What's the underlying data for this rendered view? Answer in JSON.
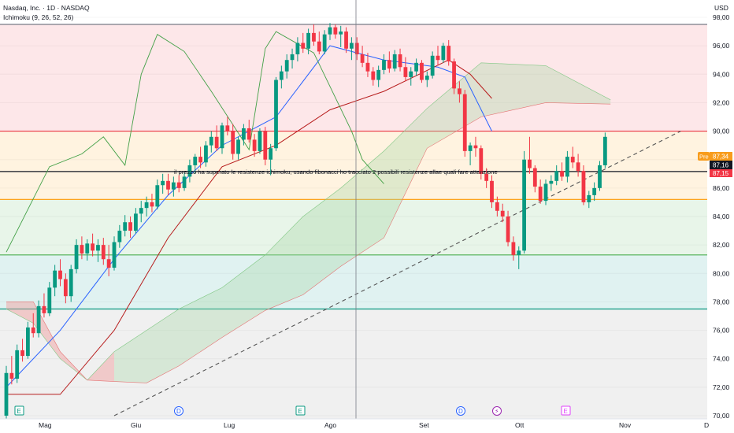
{
  "header": {
    "title": "Nasdaq, Inc. · 1D · NASDAQ",
    "indicator": "Ichimoku (9, 26, 52, 26)",
    "currency": "USD"
  },
  "annotation": "il prezzo ha superato le resistenze ichimoku, usando fibonacci ho tracciato 2 possibili resistenze allae quali fare attenzione",
  "price_badges": {
    "pre_label": "Pre",
    "pre_value": "87,34",
    "last_value": "87,16",
    "prev_value": "87,15",
    "pre_color": "#f89c1c",
    "last_color": "#131722",
    "prev_color": "#f23645"
  },
  "event_markers": [
    "E",
    "D",
    "E",
    "D",
    "⚡",
    "E"
  ],
  "colors": {
    "up": "#089981",
    "down": "#f23645",
    "tenkan": "#2962ff",
    "kijun": "#b71c1c",
    "chikou": "#43a047",
    "cloud_bull": "#a5d6a7",
    "cloud_bear": "#ef9a9a"
  },
  "chart_data": {
    "type": "candlestick",
    "symbol": "Nasdaq, Inc.",
    "interval": "1D",
    "y_axis": {
      "min": 70,
      "max": 98,
      "ticks": [
        70,
        72,
        74,
        76,
        78,
        80,
        82,
        84,
        86,
        88,
        90,
        92,
        94,
        96,
        98
      ],
      "tick_labels": [
        "70,00",
        "72,00",
        "74,00",
        "76,00",
        "78,00",
        "80,00",
        "82,00",
        "84,00",
        "86,00",
        "88,00",
        "90,00",
        "92,00",
        "94,00",
        "96,00",
        "98,00"
      ]
    },
    "x_axis": {
      "labels": [
        "Mag",
        "Giu",
        "Lug",
        "Ago",
        "Set",
        "Ott",
        "Nov",
        "D"
      ]
    },
    "fibonacci_bands": [
      {
        "price": 97.5,
        "color": "#787b86"
      },
      {
        "price": 90.0,
        "color": "#f23645"
      },
      {
        "price": 85.2,
        "color": "#ff9800"
      },
      {
        "price": 81.3,
        "color": "#4caf50"
      },
      {
        "price": 77.5,
        "color": "#089981"
      }
    ],
    "candles": [
      [
        70.0,
        73.5,
        69.5,
        73.0
      ],
      [
        73.0,
        74.2,
        72.2,
        72.6
      ],
      [
        72.6,
        75.0,
        72.3,
        74.6
      ],
      [
        74.6,
        75.4,
        73.8,
        74.2
      ],
      [
        74.2,
        76.6,
        74.0,
        76.2
      ],
      [
        76.2,
        77.2,
        75.5,
        75.8
      ],
      [
        75.8,
        78.1,
        75.5,
        77.7
      ],
      [
        77.7,
        78.6,
        76.9,
        77.2
      ],
      [
        77.2,
        79.4,
        77.0,
        79.0
      ],
      [
        79.0,
        80.6,
        78.4,
        80.2
      ],
      [
        80.2,
        81.0,
        79.1,
        79.6
      ],
      [
        79.6,
        80.0,
        77.9,
        78.4
      ],
      [
        78.4,
        80.6,
        78.0,
        80.3
      ],
      [
        80.3,
        82.4,
        80.0,
        82.0
      ],
      [
        82.0,
        82.6,
        81.0,
        81.4
      ],
      [
        81.4,
        82.4,
        80.9,
        82.1
      ],
      [
        82.1,
        82.8,
        81.2,
        81.6
      ],
      [
        81.6,
        82.4,
        80.8,
        82.0
      ],
      [
        82.0,
        82.5,
        80.6,
        81.0
      ],
      [
        81.0,
        82.0,
        79.8,
        80.4
      ],
      [
        80.4,
        82.6,
        80.2,
        82.2
      ],
      [
        82.2,
        83.4,
        81.8,
        83.0
      ],
      [
        83.0,
        84.1,
        82.6,
        83.6
      ],
      [
        83.6,
        84.0,
        82.5,
        83.0
      ],
      [
        83.0,
        84.6,
        82.8,
        84.2
      ],
      [
        84.2,
        85.1,
        83.6,
        84.6
      ],
      [
        84.6,
        85.4,
        84.0,
        85.0
      ],
      [
        85.0,
        85.6,
        84.3,
        84.7
      ],
      [
        84.7,
        86.6,
        84.5,
        86.2
      ],
      [
        86.2,
        87.0,
        85.6,
        86.5
      ],
      [
        86.5,
        87.0,
        85.5,
        85.9
      ],
      [
        85.9,
        86.8,
        85.4,
        86.4
      ],
      [
        86.4,
        86.9,
        85.7,
        86.0
      ],
      [
        86.0,
        87.1,
        85.8,
        86.8
      ],
      [
        86.8,
        88.0,
        86.4,
        87.6
      ],
      [
        87.6,
        88.4,
        87.0,
        88.2
      ],
      [
        88.2,
        88.9,
        87.4,
        87.8
      ],
      [
        87.8,
        89.3,
        87.5,
        89.0
      ],
      [
        89.0,
        90.0,
        88.5,
        89.6
      ],
      [
        89.6,
        90.4,
        88.6,
        88.8
      ],
      [
        88.8,
        90.6,
        88.4,
        90.4
      ],
      [
        90.4,
        91.0,
        89.7,
        90.0
      ],
      [
        90.0,
        90.5,
        88.0,
        88.4
      ],
      [
        88.4,
        89.6,
        88.0,
        89.4
      ],
      [
        89.4,
        90.5,
        89.0,
        90.2
      ],
      [
        90.2,
        90.8,
        89.2,
        89.4
      ],
      [
        89.4,
        89.8,
        88.2,
        88.6
      ],
      [
        88.6,
        90.2,
        88.4,
        90.0
      ],
      [
        90.0,
        90.3,
        87.6,
        88.0
      ],
      [
        88.0,
        89.1,
        86.9,
        88.8
      ],
      [
        88.8,
        93.8,
        88.6,
        93.6
      ],
      [
        93.6,
        94.6,
        93.0,
        94.2
      ],
      [
        94.2,
        95.4,
        93.7,
        95.0
      ],
      [
        95.0,
        95.8,
        94.4,
        95.4
      ],
      [
        95.4,
        96.6,
        94.9,
        96.2
      ],
      [
        96.2,
        96.9,
        95.5,
        95.8
      ],
      [
        95.8,
        97.2,
        95.4,
        96.9
      ],
      [
        96.9,
        97.5,
        96.0,
        96.3
      ],
      [
        96.3,
        97.0,
        95.4,
        95.6
      ],
      [
        95.6,
        97.1,
        95.4,
        96.8
      ],
      [
        96.8,
        97.6,
        96.4,
        97.3
      ],
      [
        97.3,
        97.5,
        96.5,
        96.8
      ],
      [
        96.8,
        97.4,
        95.9,
        97.0
      ],
      [
        97.0,
        97.3,
        95.5,
        95.8
      ],
      [
        95.8,
        96.6,
        95.0,
        96.2
      ],
      [
        96.2,
        96.6,
        95.0,
        95.4
      ],
      [
        95.4,
        96.0,
        94.5,
        94.8
      ],
      [
        94.8,
        95.5,
        93.8,
        94.2
      ],
      [
        94.2,
        94.5,
        93.2,
        93.6
      ],
      [
        93.6,
        94.6,
        93.1,
        94.3
      ],
      [
        94.3,
        95.4,
        94.0,
        95.0
      ],
      [
        95.0,
        95.6,
        94.1,
        94.4
      ],
      [
        94.4,
        95.7,
        94.2,
        95.4
      ],
      [
        95.4,
        95.8,
        94.2,
        94.5
      ],
      [
        94.5,
        95.2,
        93.5,
        93.8
      ],
      [
        93.8,
        94.5,
        93.2,
        94.2
      ],
      [
        94.2,
        95.1,
        93.9,
        94.8
      ],
      [
        94.8,
        95.0,
        93.4,
        93.6
      ],
      [
        93.6,
        94.2,
        93.1,
        93.9
      ],
      [
        93.9,
        95.6,
        93.7,
        95.3
      ],
      [
        95.3,
        96.0,
        94.6,
        95.0
      ],
      [
        95.0,
        96.2,
        94.8,
        96.0
      ],
      [
        96.0,
        96.4,
        94.6,
        94.9
      ],
      [
        94.9,
        95.1,
        92.6,
        93.0
      ],
      [
        93.0,
        93.5,
        92.0,
        92.6
      ],
      [
        92.6,
        92.9,
        88.2,
        88.6
      ],
      [
        88.6,
        89.2,
        87.6,
        89.0
      ],
      [
        89.0,
        89.6,
        88.2,
        88.8
      ],
      [
        88.8,
        89.0,
        86.6,
        87.0
      ],
      [
        87.0,
        87.4,
        86.0,
        86.5
      ],
      [
        86.5,
        86.9,
        84.6,
        85.0
      ],
      [
        85.0,
        85.4,
        84.0,
        84.4
      ],
      [
        84.4,
        84.9,
        83.6,
        84.0
      ],
      [
        84.0,
        84.4,
        81.9,
        82.2
      ],
      [
        82.2,
        82.6,
        80.9,
        81.3
      ],
      [
        81.3,
        81.9,
        80.3,
        81.6
      ],
      [
        81.6,
        88.6,
        81.4,
        88.0
      ],
      [
        88.0,
        89.6,
        87.0,
        87.4
      ],
      [
        87.4,
        87.6,
        85.7,
        86.1
      ],
      [
        86.1,
        86.6,
        84.9,
        85.1
      ],
      [
        85.1,
        86.6,
        84.8,
        86.3
      ],
      [
        86.3,
        86.9,
        85.8,
        86.5
      ],
      [
        86.5,
        87.6,
        86.2,
        87.2
      ],
      [
        87.2,
        87.8,
        86.5,
        86.8
      ],
      [
        86.8,
        88.6,
        86.4,
        88.2
      ],
      [
        88.2,
        88.9,
        87.4,
        87.8
      ],
      [
        87.8,
        88.4,
        86.8,
        87.2
      ],
      [
        87.2,
        87.6,
        84.8,
        85.0
      ],
      [
        85.0,
        85.8,
        84.6,
        85.5
      ],
      [
        85.5,
        86.4,
        85.1,
        86.0
      ],
      [
        86.0,
        87.9,
        85.8,
        87.6
      ],
      [
        87.6,
        89.9,
        87.4,
        89.6
      ]
    ],
    "tenkan_sen": [
      [
        0,
        72.0
      ],
      [
        10,
        76.0
      ],
      [
        20,
        81.0
      ],
      [
        30,
        85.5
      ],
      [
        40,
        89.0
      ],
      [
        50,
        91.0
      ],
      [
        60,
        96.0
      ],
      [
        70,
        95.0
      ],
      [
        80,
        94.5
      ],
      [
        85,
        93.8
      ],
      [
        90,
        90.0
      ]
    ],
    "kijun_sen": [
      [
        0,
        71.5
      ],
      [
        10,
        71.5
      ],
      [
        20,
        76.0
      ],
      [
        30,
        82.5
      ],
      [
        40,
        87.5
      ],
      [
        50,
        89.0
      ],
      [
        60,
        91.5
      ],
      [
        70,
        92.8
      ],
      [
        82,
        95.0
      ],
      [
        86,
        94.0
      ],
      [
        90,
        92.3
      ]
    ],
    "chikou_span": [
      [
        0,
        81.5
      ],
      [
        8,
        87.5
      ],
      [
        14,
        88.4
      ],
      [
        18,
        89.6
      ],
      [
        22,
        87.6
      ],
      [
        25,
        94.0
      ],
      [
        28,
        96.8
      ],
      [
        33,
        95.6
      ],
      [
        38,
        92.8
      ],
      [
        45,
        88.7
      ],
      [
        48,
        95.8
      ],
      [
        50,
        97.0
      ],
      [
        57,
        95.5
      ],
      [
        64,
        90.0
      ],
      [
        66,
        88.0
      ],
      [
        70,
        86.3
      ]
    ],
    "cloud_span_a": [
      [
        0,
        77.5
      ],
      [
        5,
        76.5
      ],
      [
        10,
        74.0
      ],
      [
        15,
        72.5
      ],
      [
        20,
        74.5
      ],
      [
        26,
        76.0
      ],
      [
        32,
        77.5
      ],
      [
        40,
        79.0
      ],
      [
        48,
        81.3
      ],
      [
        55,
        84.0
      ],
      [
        62,
        86.0
      ],
      [
        70,
        88.6
      ],
      [
        78,
        91.6
      ],
      [
        88,
        94.8
      ],
      [
        100,
        94.6
      ],
      [
        112,
        92.2
      ]
    ],
    "cloud_span_b": [
      [
        0,
        78.0
      ],
      [
        5,
        78.0
      ],
      [
        10,
        74.5
      ],
      [
        15,
        72.5
      ],
      [
        20,
        72.4
      ],
      [
        26,
        72.3
      ],
      [
        32,
        73.5
      ],
      [
        40,
        75.5
      ],
      [
        48,
        77.4
      ],
      [
        55,
        78.5
      ],
      [
        62,
        80.5
      ],
      [
        70,
        82.5
      ],
      [
        78,
        88.8
      ],
      [
        88,
        91.0
      ],
      [
        100,
        92.0
      ],
      [
        112,
        91.9
      ]
    ],
    "trendline_dashed": [
      [
        20,
        70.0
      ],
      [
        125,
        90.0
      ]
    ]
  }
}
